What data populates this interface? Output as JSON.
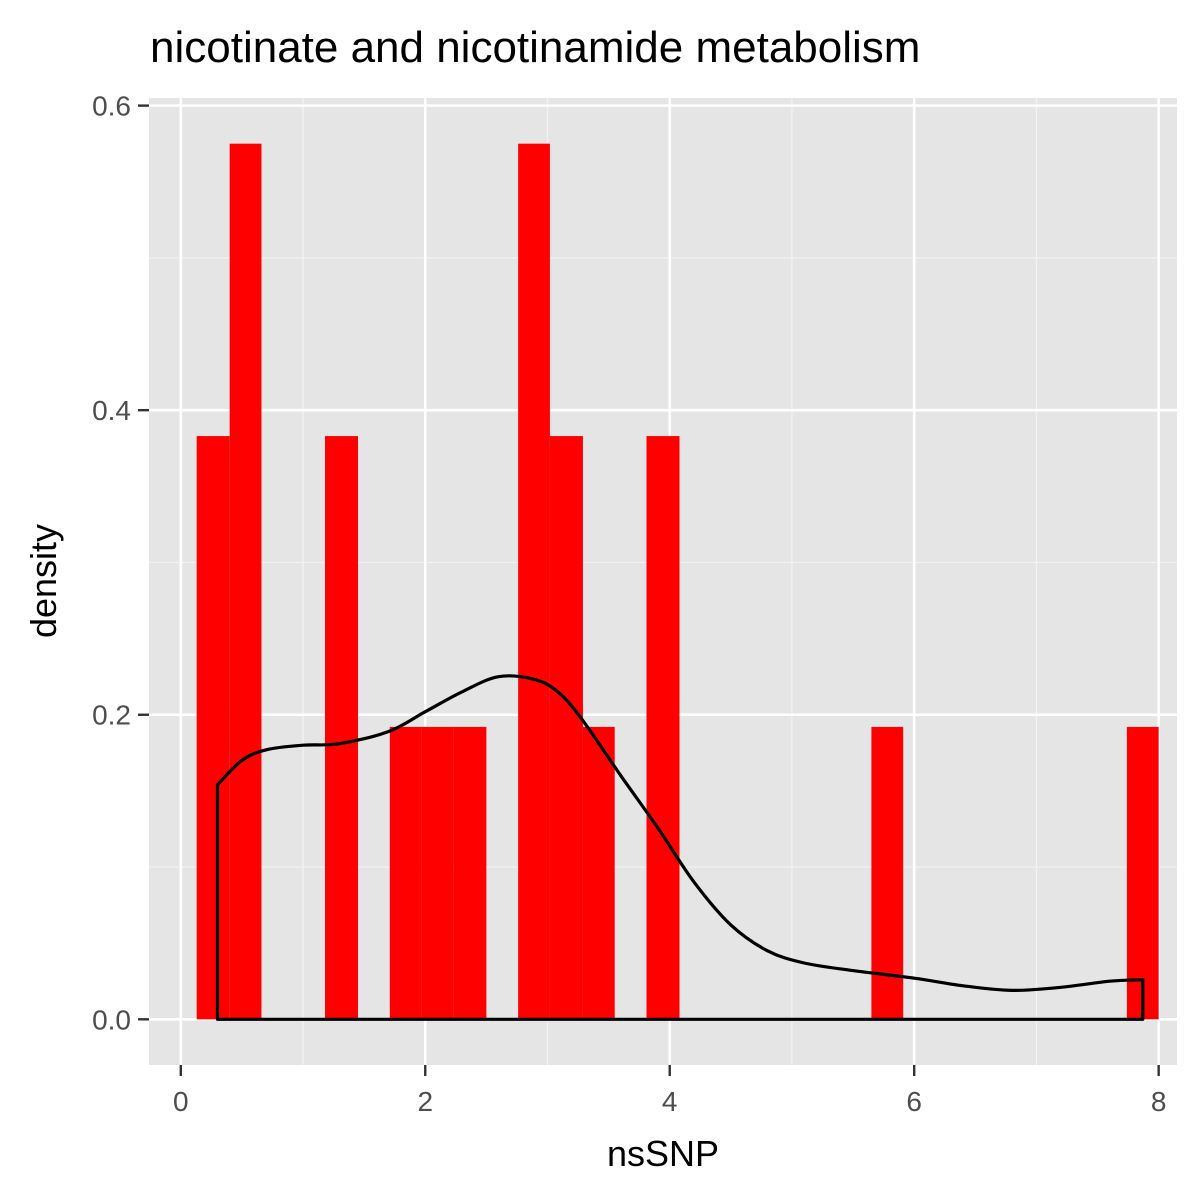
{
  "chart_data": {
    "type": "bar",
    "subtype": "histogram-with-density",
    "title": "nicotinate and nicotinamide metabolism",
    "xlabel": "nsSNP",
    "ylabel": "density",
    "xlim": [
      -0.26,
      8.15
    ],
    "ylim": [
      -0.03,
      0.605
    ],
    "x_ticks": [
      0,
      2,
      4,
      6,
      8
    ],
    "x_tick_labels": [
      "0",
      "2",
      "4",
      "6",
      "8"
    ],
    "y_ticks": [
      0.0,
      0.2,
      0.4,
      0.6
    ],
    "y_tick_labels": [
      "0.0",
      "0.2",
      "0.4",
      "0.6"
    ],
    "grid": true,
    "bins": [
      {
        "x0": 0.13,
        "x1": 0.4,
        "density": 0.383
      },
      {
        "x0": 0.4,
        "x1": 0.66,
        "density": 0.575
      },
      {
        "x0": 1.18,
        "x1": 1.45,
        "density": 0.383
      },
      {
        "x0": 1.71,
        "x1": 1.97,
        "density": 0.192
      },
      {
        "x0": 1.97,
        "x1": 2.23,
        "density": 0.192
      },
      {
        "x0": 2.23,
        "x1": 2.5,
        "density": 0.192
      },
      {
        "x0": 2.76,
        "x1": 3.02,
        "density": 0.575
      },
      {
        "x0": 3.02,
        "x1": 3.29,
        "density": 0.383
      },
      {
        "x0": 3.29,
        "x1": 3.55,
        "density": 0.192
      },
      {
        "x0": 3.81,
        "x1": 4.08,
        "density": 0.383
      },
      {
        "x0": 5.65,
        "x1": 5.91,
        "density": 0.192
      },
      {
        "x0": 7.74,
        "x1": 8.0,
        "density": 0.192
      }
    ],
    "density_curve": {
      "x": [
        0.3,
        0.3,
        0.5,
        0.7,
        1.0,
        1.3,
        1.7,
        2.0,
        2.3,
        2.6,
        2.9,
        3.1,
        3.3,
        3.6,
        3.9,
        4.2,
        4.5,
        4.8,
        5.1,
        5.5,
        6.0,
        6.4,
        6.8,
        7.2,
        7.6,
        7.87,
        7.87,
        0.3
      ],
      "y": [
        0.0,
        0.154,
        0.17,
        0.177,
        0.18,
        0.181,
        0.189,
        0.202,
        0.215,
        0.225,
        0.223,
        0.214,
        0.195,
        0.16,
        0.126,
        0.09,
        0.062,
        0.045,
        0.037,
        0.032,
        0.027,
        0.022,
        0.019,
        0.021,
        0.025,
        0.026,
        0.0,
        0.0
      ]
    },
    "colors": {
      "bar_fill": "#ff0000",
      "curve": "#000000",
      "panel_background": "#e5e5e5",
      "grid_major": "#ffffff",
      "grid_minor": "#f2f2f2"
    }
  }
}
